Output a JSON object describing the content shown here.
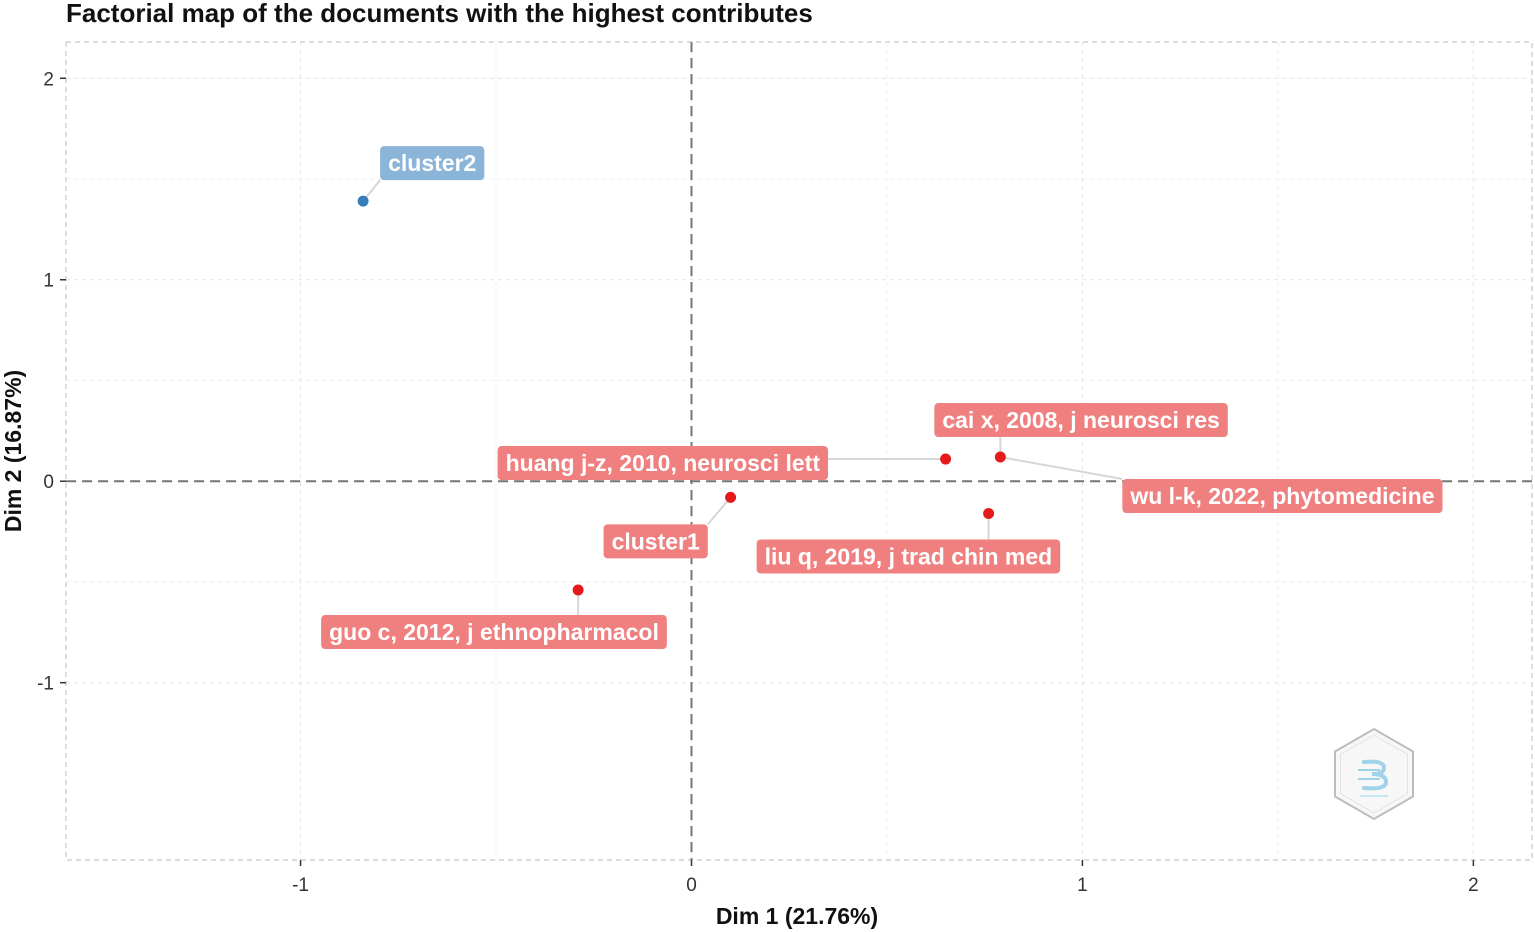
{
  "chart_data": {
    "type": "scatter",
    "title": "Factorial map of the documents with the highest contributes",
    "xlabel": "Dim 1 (21.76%)",
    "ylabel": "Dim 2 (16.87%)",
    "xlim": [
      -1.6,
      2.15
    ],
    "ylim": [
      -1.88,
      2.18
    ],
    "xticks": [
      -1,
      0,
      1,
      2
    ],
    "xtick_labels": [
      "-1",
      "0",
      "1",
      "2"
    ],
    "yticks": [
      -1,
      0,
      1,
      2
    ],
    "ytick_labels": [
      "-1",
      "0",
      "1",
      "2"
    ],
    "grid": true,
    "reference_lines": {
      "x": 0,
      "y": 0,
      "style": "dashed"
    },
    "colors": {
      "cluster1": "#e41a1c",
      "cluster1_label": "#f08080",
      "cluster2": "#377eb8",
      "cluster2_label": "#8ab4d8",
      "label_text": "#ffffff"
    },
    "points": [
      {
        "x": -0.84,
        "y": 1.39,
        "label": "cluster2",
        "group": "cluster2"
      },
      {
        "x": 0.1,
        "y": -0.08,
        "label": "cluster1",
        "group": "cluster1"
      },
      {
        "x": 0.65,
        "y": 0.11,
        "label": "huang j-z, 2010, neurosci lett",
        "group": "cluster1"
      },
      {
        "x": 0.79,
        "y": 0.12,
        "label": "cai x, 2008, j neurosci res",
        "group": "cluster1"
      },
      {
        "x": 0.79,
        "y": 0.12,
        "label": "wu l-k, 2022, phytomedicine",
        "group": "cluster1"
      },
      {
        "x": 0.76,
        "y": -0.16,
        "label": "liu q, 2019, j trad chin med",
        "group": "cluster1"
      },
      {
        "x": -0.29,
        "y": -0.54,
        "label": "guo c, 2012, j ethnopharmacol",
        "group": "cluster1"
      }
    ]
  },
  "watermark": {
    "icon": "bibliometrix-hexagon-logo"
  }
}
